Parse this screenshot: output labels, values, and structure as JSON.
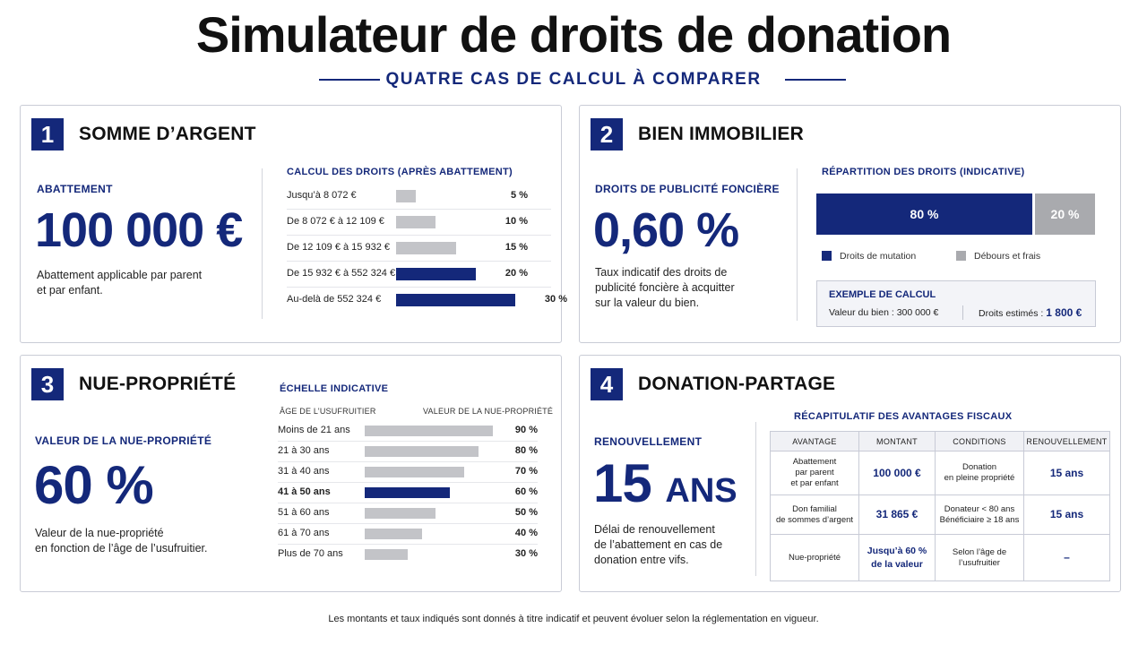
{
  "header": {
    "title": "Simulateur de droits de donation",
    "subtitle": "QUATRE CAS DE CALCUL À COMPARER"
  },
  "card1": {
    "number": "1",
    "title": "SOMME D’ARGENT",
    "kicker": "ABATTEMENT",
    "value": "100 000 €",
    "desc_line1": "Abattement applicable par parent",
    "desc_line2": "et par enfant.",
    "table_title": "CALCUL DES DROITS (APRÈS ABATTEMENT)",
    "brackets": [
      {
        "label": "Jusqu’à 8 072 €",
        "rate": "5 %",
        "value": 5
      },
      {
        "label": "De 8 072 € à 12 109 €",
        "rate": "10 %",
        "value": 10
      },
      {
        "label": "De 12 109 € à 15 932 €",
        "rate": "15 %",
        "value": 15
      },
      {
        "label": "De 15 932 € à 552 324 €",
        "rate": "20 %",
        "value": 20
      },
      {
        "label": "Au-delà de 552 324 €",
        "rate": "30 %",
        "value": 30
      }
    ]
  },
  "card2": {
    "number": "2",
    "title": "BIEN IMMOBILIER",
    "kicker": "DROITS DE PUBLICITÉ FONCIÈRE",
    "value": "0,60 %",
    "desc_line1": "Taux indicatif des droits de",
    "desc_line2": "publicité foncière à acquitter",
    "desc_line3": "sur la valeur du bien.",
    "repartition_title": "RÉPARTITION DES DROITS (INDICATIVE)",
    "segments": [
      {
        "label": "80 %",
        "value": 80
      },
      {
        "label": "20 %",
        "value": 20
      }
    ],
    "legend": [
      "Droits de mutation",
      "Débours et frais"
    ],
    "example": {
      "title": "EXEMPLE DE CALCUL",
      "left": "Valeur du bien : 300 000 €",
      "right_label": "Droits estimés : ",
      "right_value": "1 800 €"
    }
  },
  "card3": {
    "number": "3",
    "title": "NUE-PROPRIÉTÉ",
    "kicker": "VALEUR DE LA NUE-PROPRIÉTÉ",
    "value": "60 %",
    "desc_line1": "Valeur de la nue-propriété",
    "desc_line2": "en fonction de l’âge de l’usufruitier.",
    "scale_title": "ÉCHELLE INDICATIVE",
    "col_left": "ÂGE DE L’USUFRUITIER",
    "col_right": "VALEUR DE LA NUE-PROPRIÉTÉ",
    "rows": [
      {
        "label": "Moins de 21 ans",
        "rate": "90 %",
        "value": 90
      },
      {
        "label": "21 à 30 ans",
        "rate": "80 %",
        "value": 80
      },
      {
        "label": "31 à 40 ans",
        "rate": "70 %",
        "value": 70
      },
      {
        "label": "41 à 50 ans",
        "rate": "60 %",
        "value": 60
      },
      {
        "label": "51 à 60 ans",
        "rate": "50 %",
        "value": 50
      },
      {
        "label": "61 à 70 ans",
        "rate": "40 %",
        "value": 40
      },
      {
        "label": "Plus de 70 ans",
        "rate": "30 %",
        "value": 30
      }
    ]
  },
  "card4": {
    "number": "4",
    "title": "DONATION-PARTAGE",
    "kicker": "RENOUVELLEMENT",
    "value_num": "15",
    "value_unit": "ANS",
    "desc_line1": "Délai de renouvellement",
    "desc_line2": "de l’abattement en cas de",
    "desc_line3": "donation entre vifs.",
    "table_title": "RÉCAPITULATIF DES AVANTAGES FISCAUX",
    "columns": [
      "AVANTAGE",
      "MONTANT",
      "CONDITIONS",
      "RENOUVELLEMENT"
    ],
    "rows": [
      {
        "avantage": [
          "Abattement",
          "par parent",
          "et par enfant"
        ],
        "montant": [
          "100 000 €"
        ],
        "conditions": [
          "Donation",
          "en pleine propriété"
        ],
        "renouvellement": "15 ans"
      },
      {
        "avantage": [
          "Don familial",
          "de sommes d’argent"
        ],
        "montant": [
          "31 865 €"
        ],
        "conditions": [
          "Donateur < 80 ans",
          "Bénéficiaire ≥ 18 ans"
        ],
        "renouvellement": "15 ans"
      },
      {
        "avantage": [
          "Nue-propriété"
        ],
        "montant": [
          "Jusqu’à 60 %",
          "de la valeur"
        ],
        "conditions": [
          "Selon l’âge de",
          "l’usufruitier"
        ],
        "renouvellement": "–"
      }
    ]
  },
  "footer": "Les montants et taux indiqués sont donnés à titre indicatif et peuvent évoluer selon la réglementation en vigueur.",
  "colors": {
    "navy": "#14287a",
    "grey_bar": "#c3c4c8",
    "border": "#c9ccd6"
  }
}
